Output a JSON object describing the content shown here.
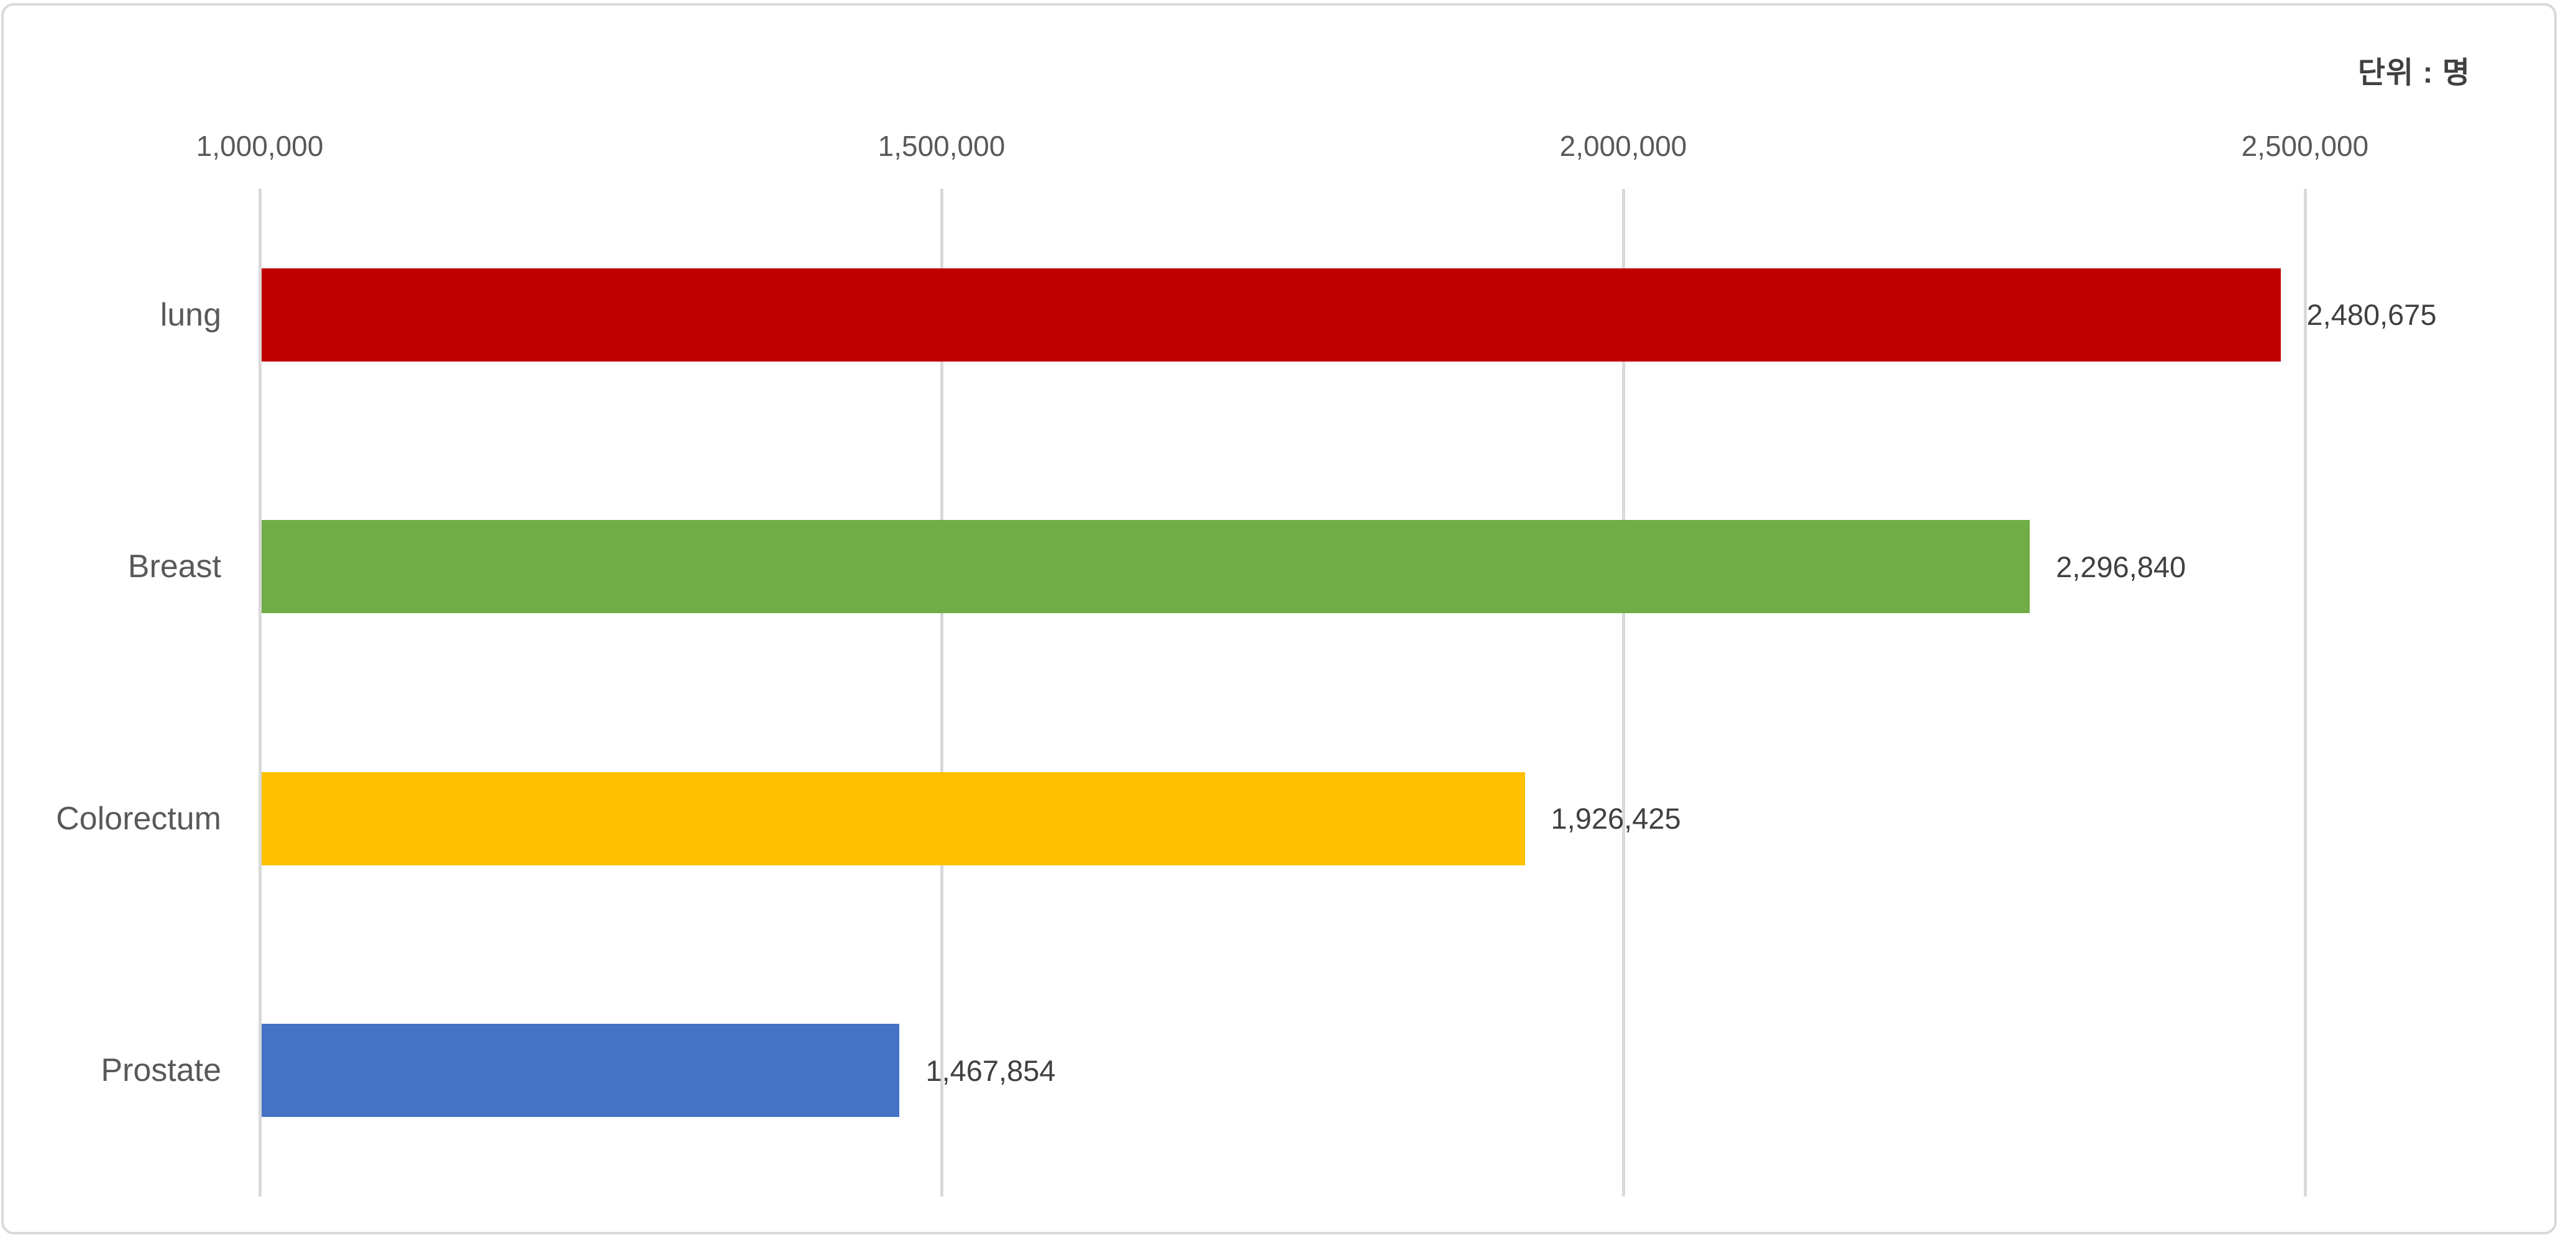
{
  "chart_data": {
    "type": "bar",
    "orientation": "horizontal",
    "title": "",
    "unit_annotation": "단위 : 명",
    "categories": [
      "lung",
      "Breast",
      "Colorectum",
      "Prostate"
    ],
    "values": [
      2480675,
      2296840,
      1926425,
      1467854
    ],
    "value_labels": [
      "2,480,675",
      "2,296,840",
      "1,926,425",
      "1,467,854"
    ],
    "bar_colors": [
      "#c00000",
      "#70ad47",
      "#ffc000",
      "#4472c4"
    ],
    "x_axis": {
      "min": 1000000,
      "max": 2650000,
      "ticks": [
        1000000,
        1500000,
        2000000,
        2500000
      ],
      "tick_labels": [
        "1,000,000",
        "1,500,000",
        "2,000,000",
        "2,500,000"
      ],
      "tick_position": "top",
      "grid": true
    },
    "legend": "none",
    "colors": {
      "background": "#ffffff",
      "chart_border": "#d9d9d9",
      "gridline": "#d9d9d9",
      "tick_text": "#595959",
      "category_text": "#595959",
      "value_text": "#404040",
      "unit_text": "#404040"
    }
  }
}
